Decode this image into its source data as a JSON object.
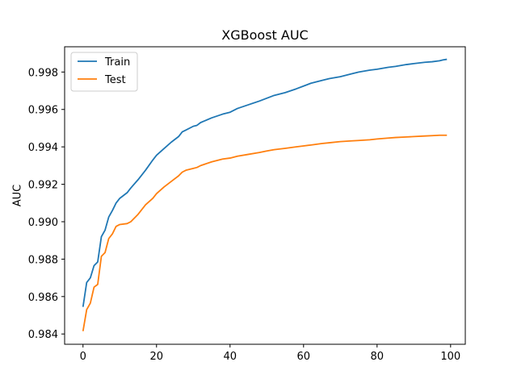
{
  "chart_data": {
    "type": "line",
    "title": "XGBoost AUC",
    "xlabel": "",
    "ylabel": "AUC",
    "xlim": [
      -5,
      104
    ],
    "ylim": [
      0.98345,
      0.99935
    ],
    "xticks": [
      0,
      20,
      40,
      60,
      80,
      100
    ],
    "yticks": [
      0.984,
      0.986,
      0.988,
      0.99,
      0.992,
      0.994,
      0.996,
      0.998
    ],
    "ytick_labels": [
      "0.984",
      "0.986",
      "0.988",
      "0.990",
      "0.992",
      "0.994",
      "0.996",
      "0.998"
    ],
    "xtick_labels": [
      "0",
      "20",
      "40",
      "60",
      "80",
      "100"
    ],
    "grid": false,
    "legend_position": "top-left",
    "series": [
      {
        "name": "Train",
        "color": "#1f77b4",
        "x": [
          0,
          1,
          2,
          3,
          4,
          5,
          6,
          7,
          8,
          9,
          10,
          12,
          13,
          15,
          17,
          19,
          20,
          22,
          24,
          26,
          27,
          28,
          30,
          31,
          32,
          35,
          38,
          40,
          42,
          45,
          48,
          50,
          52,
          55,
          58,
          60,
          62,
          65,
          67,
          70,
          73,
          75,
          78,
          80,
          83,
          85,
          88,
          90,
          93,
          95,
          97,
          98,
          99
        ],
        "y": [
          0.98545,
          0.98675,
          0.987,
          0.98765,
          0.98785,
          0.9892,
          0.98955,
          0.99025,
          0.9906,
          0.991,
          0.99125,
          0.99155,
          0.9918,
          0.99225,
          0.99275,
          0.9933,
          0.99355,
          0.9939,
          0.99425,
          0.99455,
          0.9948,
          0.9949,
          0.9951,
          0.99515,
          0.9953,
          0.99555,
          0.99575,
          0.99585,
          0.99605,
          0.99625,
          0.99645,
          0.9966,
          0.99675,
          0.9969,
          0.9971,
          0.99725,
          0.9974,
          0.99755,
          0.99765,
          0.99775,
          0.9979,
          0.998,
          0.9981,
          0.99815,
          0.99825,
          0.9983,
          0.9984,
          0.99845,
          0.99852,
          0.99855,
          0.9986,
          0.99865,
          0.99868
        ]
      },
      {
        "name": "Test",
        "color": "#ff7f0e",
        "x": [
          0,
          1,
          2,
          3,
          4,
          5,
          6,
          7,
          8,
          9,
          10,
          12,
          13,
          15,
          17,
          19,
          20,
          22,
          24,
          26,
          27,
          28,
          30,
          31,
          32,
          35,
          38,
          40,
          42,
          45,
          48,
          50,
          52,
          55,
          58,
          60,
          62,
          65,
          67,
          70,
          73,
          75,
          78,
          80,
          83,
          85,
          88,
          90,
          93,
          95,
          97,
          98,
          99
        ],
        "y": [
          0.98415,
          0.9853,
          0.98565,
          0.9865,
          0.98665,
          0.98815,
          0.98835,
          0.9891,
          0.98935,
          0.98975,
          0.98985,
          0.9899,
          0.99,
          0.9904,
          0.9909,
          0.99125,
          0.9915,
          0.99185,
          0.99215,
          0.99245,
          0.99265,
          0.99275,
          0.99285,
          0.9929,
          0.993,
          0.9932,
          0.99335,
          0.9934,
          0.9935,
          0.9936,
          0.9937,
          0.99378,
          0.99385,
          0.99392,
          0.994,
          0.99405,
          0.9941,
          0.99418,
          0.99422,
          0.99428,
          0.99432,
          0.99434,
          0.99438,
          0.99442,
          0.99447,
          0.9945,
          0.99453,
          0.99455,
          0.99458,
          0.9946,
          0.99462,
          0.99462,
          0.99462
        ]
      }
    ]
  }
}
